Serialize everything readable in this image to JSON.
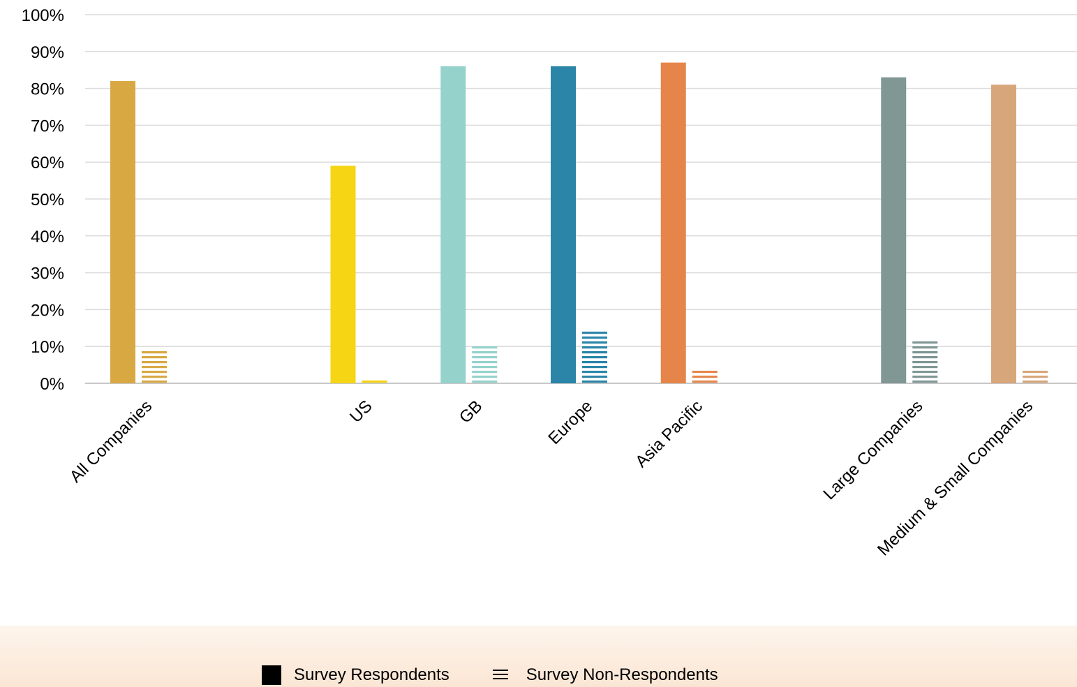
{
  "chart_data": {
    "type": "bar",
    "categories": [
      "All Companies",
      "US",
      "GB",
      "Europe",
      "Asia Pacific",
      "Large Companies",
      "Medium & Small Companies"
    ],
    "series": [
      {
        "name": "Survey Respondents",
        "style": "solid",
        "values": [
          82,
          59,
          86,
          86,
          87,
          83,
          81
        ]
      },
      {
        "name": "Survey Non-Respondents",
        "style": "striped",
        "values": [
          9,
          1,
          10.5,
          15,
          4.5,
          12,
          4.5
        ]
      }
    ],
    "category_colors": [
      "#d8a843",
      "#f5d514",
      "#95d2cc",
      "#2a85a8",
      "#e6854a",
      "#809794",
      "#d7a67a"
    ],
    "ylim": [
      0,
      100
    ],
    "yticks": [
      "0%",
      "10%",
      "20%",
      "30%",
      "40%",
      "50%",
      "60%",
      "70%",
      "80%",
      "90%",
      "100%"
    ],
    "grid": true,
    "legend_position": "bottom",
    "xlabel": "",
    "ylabel": ""
  },
  "legend": {
    "respondents_label": "Survey Respondents",
    "non_respondents_label": "Survey Non-Respondents"
  }
}
